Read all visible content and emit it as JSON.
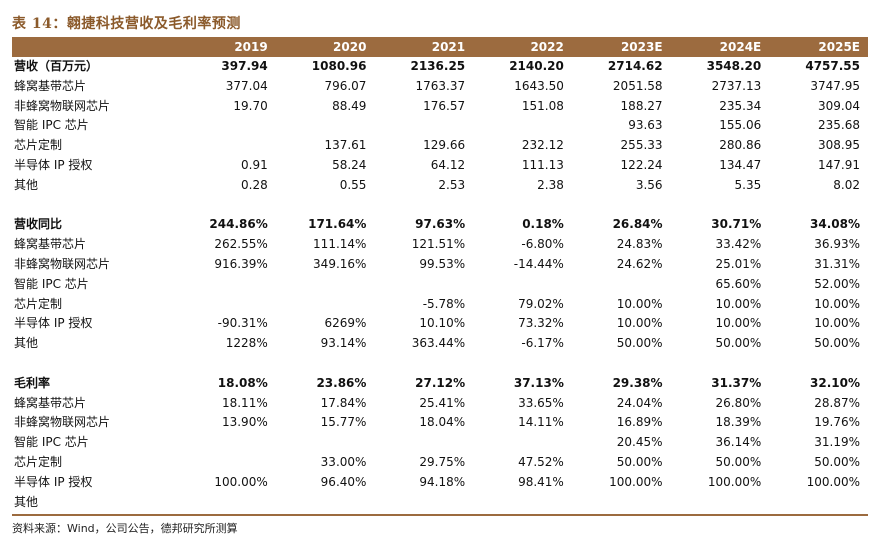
{
  "title": "表 14：翱捷科技营收及毛利率预测",
  "header": {
    "first": "",
    "years": [
      "2019",
      "2020",
      "2021",
      "2022",
      "2023E",
      "2024E",
      "2025E"
    ]
  },
  "rows": [
    {
      "label": "营收（百万元）",
      "bold": true,
      "values": [
        "397.94",
        "1080.96",
        "2136.25",
        "2140.20",
        "2714.62",
        "3548.20",
        "4757.55"
      ]
    },
    {
      "label": "蜂窝基带芯片",
      "values": [
        "377.04",
        "796.07",
        "1763.37",
        "1643.50",
        "2051.58",
        "2737.13",
        "3747.95"
      ]
    },
    {
      "label": "非蜂窝物联网芯片",
      "values": [
        "19.70",
        "88.49",
        "176.57",
        "151.08",
        "188.27",
        "235.34",
        "309.04"
      ]
    },
    {
      "label": "智能 IPC 芯片",
      "values": [
        "",
        "",
        "",
        "",
        "93.63",
        "155.06",
        "235.68"
      ]
    },
    {
      "label": "芯片定制",
      "values": [
        "",
        "137.61",
        "129.66",
        "232.12",
        "255.33",
        "280.86",
        "308.95"
      ]
    },
    {
      "label": "半导体 IP 授权",
      "values": [
        "0.91",
        "58.24",
        "64.12",
        "111.13",
        "122.24",
        "134.47",
        "147.91"
      ]
    },
    {
      "label": "其他",
      "values": [
        "0.28",
        "0.55",
        "2.53",
        "2.38",
        "3.56",
        "5.35",
        "8.02"
      ]
    },
    {
      "spacer": true
    },
    {
      "label": "营收同比",
      "bold": true,
      "values": [
        "244.86%",
        "171.64%",
        "97.63%",
        "0.18%",
        "26.84%",
        "30.71%",
        "34.08%"
      ]
    },
    {
      "label": "蜂窝基带芯片",
      "values": [
        "262.55%",
        "111.14%",
        "121.51%",
        "-6.80%",
        "24.83%",
        "33.42%",
        "36.93%"
      ]
    },
    {
      "label": "非蜂窝物联网芯片",
      "values": [
        "916.39%",
        "349.16%",
        "99.53%",
        "-14.44%",
        "24.62%",
        "25.01%",
        "31.31%"
      ]
    },
    {
      "label": "智能 IPC 芯片",
      "values": [
        "",
        "",
        "",
        "",
        "",
        "65.60%",
        "52.00%"
      ]
    },
    {
      "label": "芯片定制",
      "values": [
        "",
        "",
        "-5.78%",
        "79.02%",
        "10.00%",
        "10.00%",
        "10.00%"
      ]
    },
    {
      "label": "半导体 IP 授权",
      "values": [
        "-90.31%",
        "6269%",
        "10.10%",
        "73.32%",
        "10.00%",
        "10.00%",
        "10.00%"
      ]
    },
    {
      "label": "其他",
      "values": [
        "1228%",
        "93.14%",
        "363.44%",
        "-6.17%",
        "50.00%",
        "50.00%",
        "50.00%"
      ]
    },
    {
      "spacer": true
    },
    {
      "label": "毛利率",
      "bold": true,
      "values": [
        "18.08%",
        "23.86%",
        "27.12%",
        "37.13%",
        "29.38%",
        "31.37%",
        "32.10%"
      ]
    },
    {
      "label": "蜂窝基带芯片",
      "values": [
        "18.11%",
        "17.84%",
        "25.41%",
        "33.65%",
        "24.04%",
        "26.80%",
        "28.87%"
      ]
    },
    {
      "label": "非蜂窝物联网芯片",
      "values": [
        "13.90%",
        "15.77%",
        "18.04%",
        "14.11%",
        "16.89%",
        "18.39%",
        "19.76%"
      ]
    },
    {
      "label": "智能 IPC 芯片",
      "values": [
        "",
        "",
        "",
        "",
        "20.45%",
        "36.14%",
        "31.19%"
      ]
    },
    {
      "label": "芯片定制",
      "values": [
        "",
        "33.00%",
        "29.75%",
        "47.52%",
        "50.00%",
        "50.00%",
        "50.00%"
      ]
    },
    {
      "label": "半导体 IP 授权",
      "values": [
        "100.00%",
        "96.40%",
        "94.18%",
        "98.41%",
        "100.00%",
        "100.00%",
        "100.00%"
      ]
    },
    {
      "label": "其他",
      "values": [
        "",
        "",
        "",
        "",
        "",
        "",
        ""
      ]
    }
  ],
  "source": "资料来源：Wind，公司公告，德邦研究所测算"
}
